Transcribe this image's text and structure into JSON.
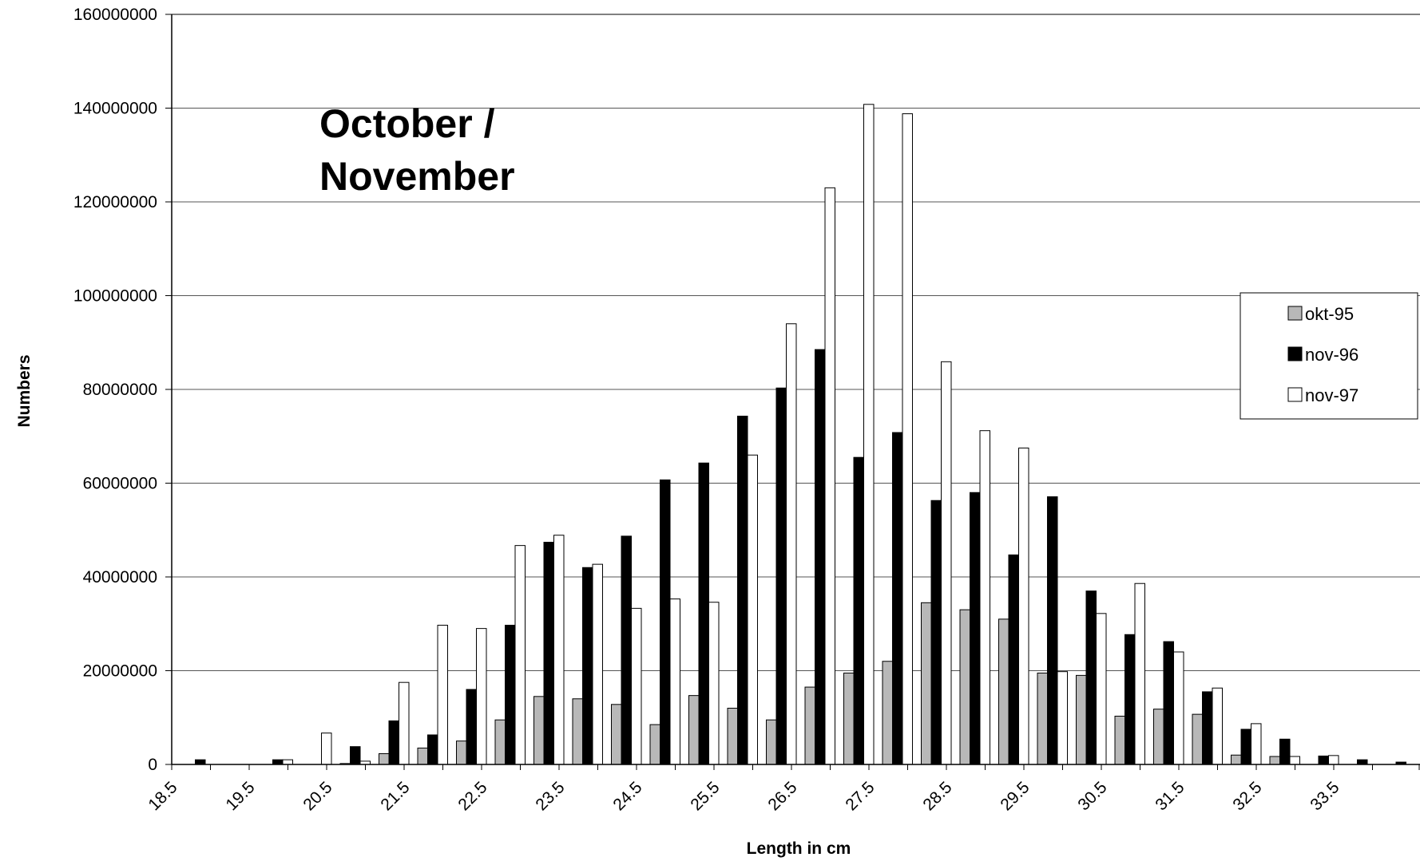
{
  "chart_data": {
    "type": "bar",
    "annotation_lines": [
      "October /",
      "November"
    ],
    "xlabel": "Length in cm",
    "ylabel": "Numbers",
    "ylim": [
      0,
      160000000
    ],
    "yticks": [
      "0",
      "20000000",
      "40000000",
      "60000000",
      "80000000",
      "100000000",
      "120000000",
      "140000000",
      "160000000"
    ],
    "categories": [
      18.5,
      19,
      19.5,
      20,
      20.5,
      21,
      21.5,
      22,
      22.5,
      23,
      23.5,
      24,
      24.5,
      25,
      25.5,
      26,
      26.5,
      27,
      27.5,
      28,
      28.5,
      29,
      29.5,
      30,
      30.5,
      31,
      31.5,
      32,
      32.5,
      33,
      33.5,
      34
    ],
    "xtick_labels": [
      "18.5",
      "19.5",
      "20.5",
      "21.5",
      "22.5",
      "23.5",
      "24.5",
      "25.5",
      "26.5",
      "27.5",
      "28.5",
      "29.5",
      "30.5",
      "31.5",
      "32.5",
      "33.5"
    ],
    "grid": true,
    "legend_position": "right",
    "series": [
      {
        "name": "okt-95",
        "color": "#b8b8b8",
        "values": [
          0,
          0,
          0,
          0,
          200000,
          2300000,
          3500000,
          5000000,
          9500000,
          14500000,
          14000000,
          12800000,
          8500000,
          14700000,
          12000000,
          9500000,
          16500000,
          19500000,
          22000000,
          34500000,
          33000000,
          31000000,
          19500000,
          19000000,
          10300000,
          11800000,
          10700000,
          2000000,
          1700000,
          0,
          0,
          0
        ]
      },
      {
        "name": "nov-96",
        "color": "#000000",
        "values": [
          1000000,
          0,
          1000000,
          0,
          3800000,
          9300000,
          6300000,
          16000000,
          29700000,
          47400000,
          42000000,
          48700000,
          60700000,
          64300000,
          74300000,
          80300000,
          88500000,
          65500000,
          70800000,
          56300000,
          58000000,
          44700000,
          57100000,
          37000000,
          27700000,
          26200000,
          15500000,
          7500000,
          5400000,
          1800000,
          1000000,
          500000
        ]
      },
      {
        "name": "nov-97",
        "color": "#ffffff",
        "values": [
          0,
          0,
          1000000,
          6700000,
          700000,
          17500000,
          29700000,
          29000000,
          46700000,
          48900000,
          42700000,
          33300000,
          35300000,
          34600000,
          66000000,
          94000000,
          123000000,
          140800000,
          138800000,
          85900000,
          71200000,
          67500000,
          19800000,
          32200000,
          38600000,
          24000000,
          16300000,
          8700000,
          1700000,
          1900000,
          0,
          0
        ]
      }
    ]
  }
}
